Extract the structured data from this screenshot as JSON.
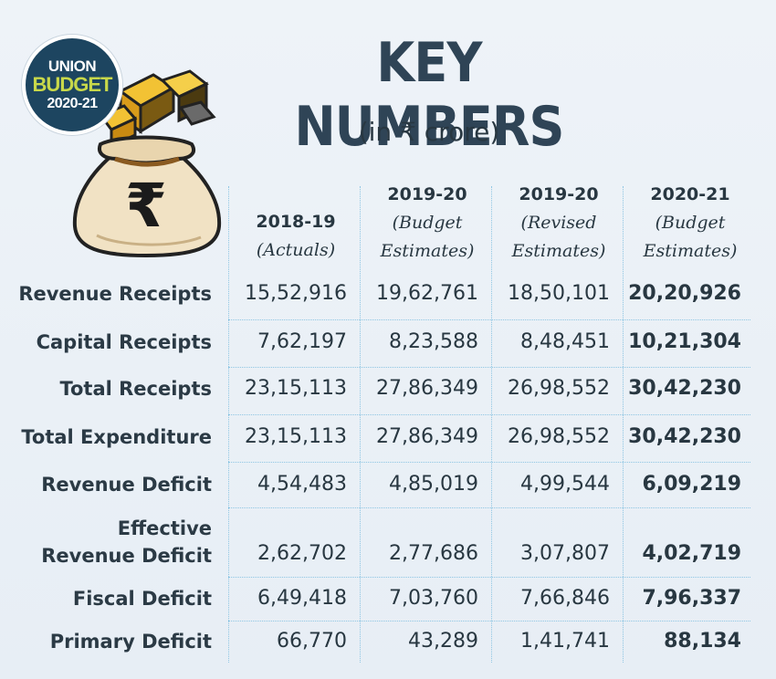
{
  "badge": {
    "line1": "UNION",
    "line2": "BUDGET",
    "line3": "2020-21"
  },
  "title": "KEY NUMBERS",
  "subtitle": "(in ₹ crore)",
  "bag_symbol": "₹",
  "columns": [
    {
      "year": "2018-19",
      "sub1": "(Actuals)",
      "sub2": ""
    },
    {
      "year": "2019-20",
      "sub1": "(Budget",
      "sub2": "Estimates)"
    },
    {
      "year": "2019-20",
      "sub1": "(Revised",
      "sub2": "Estimates)"
    },
    {
      "year": "2020-21",
      "sub1": "(Budget",
      "sub2": "Estimates)"
    }
  ],
  "rows": [
    {
      "label": "Revenue Receipts",
      "label2": "",
      "values": [
        "15,52,916",
        "19,62,761",
        "18,50,101",
        "20,20,926"
      ]
    },
    {
      "label": "Capital Receipts",
      "label2": "",
      "values": [
        "7,62,197",
        "8,23,588",
        "8,48,451",
        "10,21,304"
      ]
    },
    {
      "label": "Total Receipts",
      "label2": "",
      "values": [
        "23,15,113",
        "27,86,349",
        "26,98,552",
        "30,42,230"
      ]
    },
    {
      "label": "Total Expenditure",
      "label2": "",
      "values": [
        "23,15,113",
        "27,86,349",
        "26,98,552",
        "30,42,230"
      ]
    },
    {
      "label": "Revenue Deficit",
      "label2": "",
      "values": [
        "4,54,483",
        "4,85,019",
        "4,99,544",
        "6,09,219"
      ]
    },
    {
      "label": "Effective",
      "label2": "Revenue Deficit",
      "values": [
        "2,62,702",
        "2,77,686",
        "3,07,807",
        "4,02,719"
      ]
    },
    {
      "label": "Fiscal Deficit",
      "label2": "",
      "values": [
        "6,49,418",
        "7,03,760",
        "7,66,846",
        "7,96,337"
      ]
    },
    {
      "label": "Primary Deficit",
      "label2": "",
      "values": [
        "66,770",
        "43,289",
        "1,41,741",
        "88,134"
      ]
    }
  ]
}
